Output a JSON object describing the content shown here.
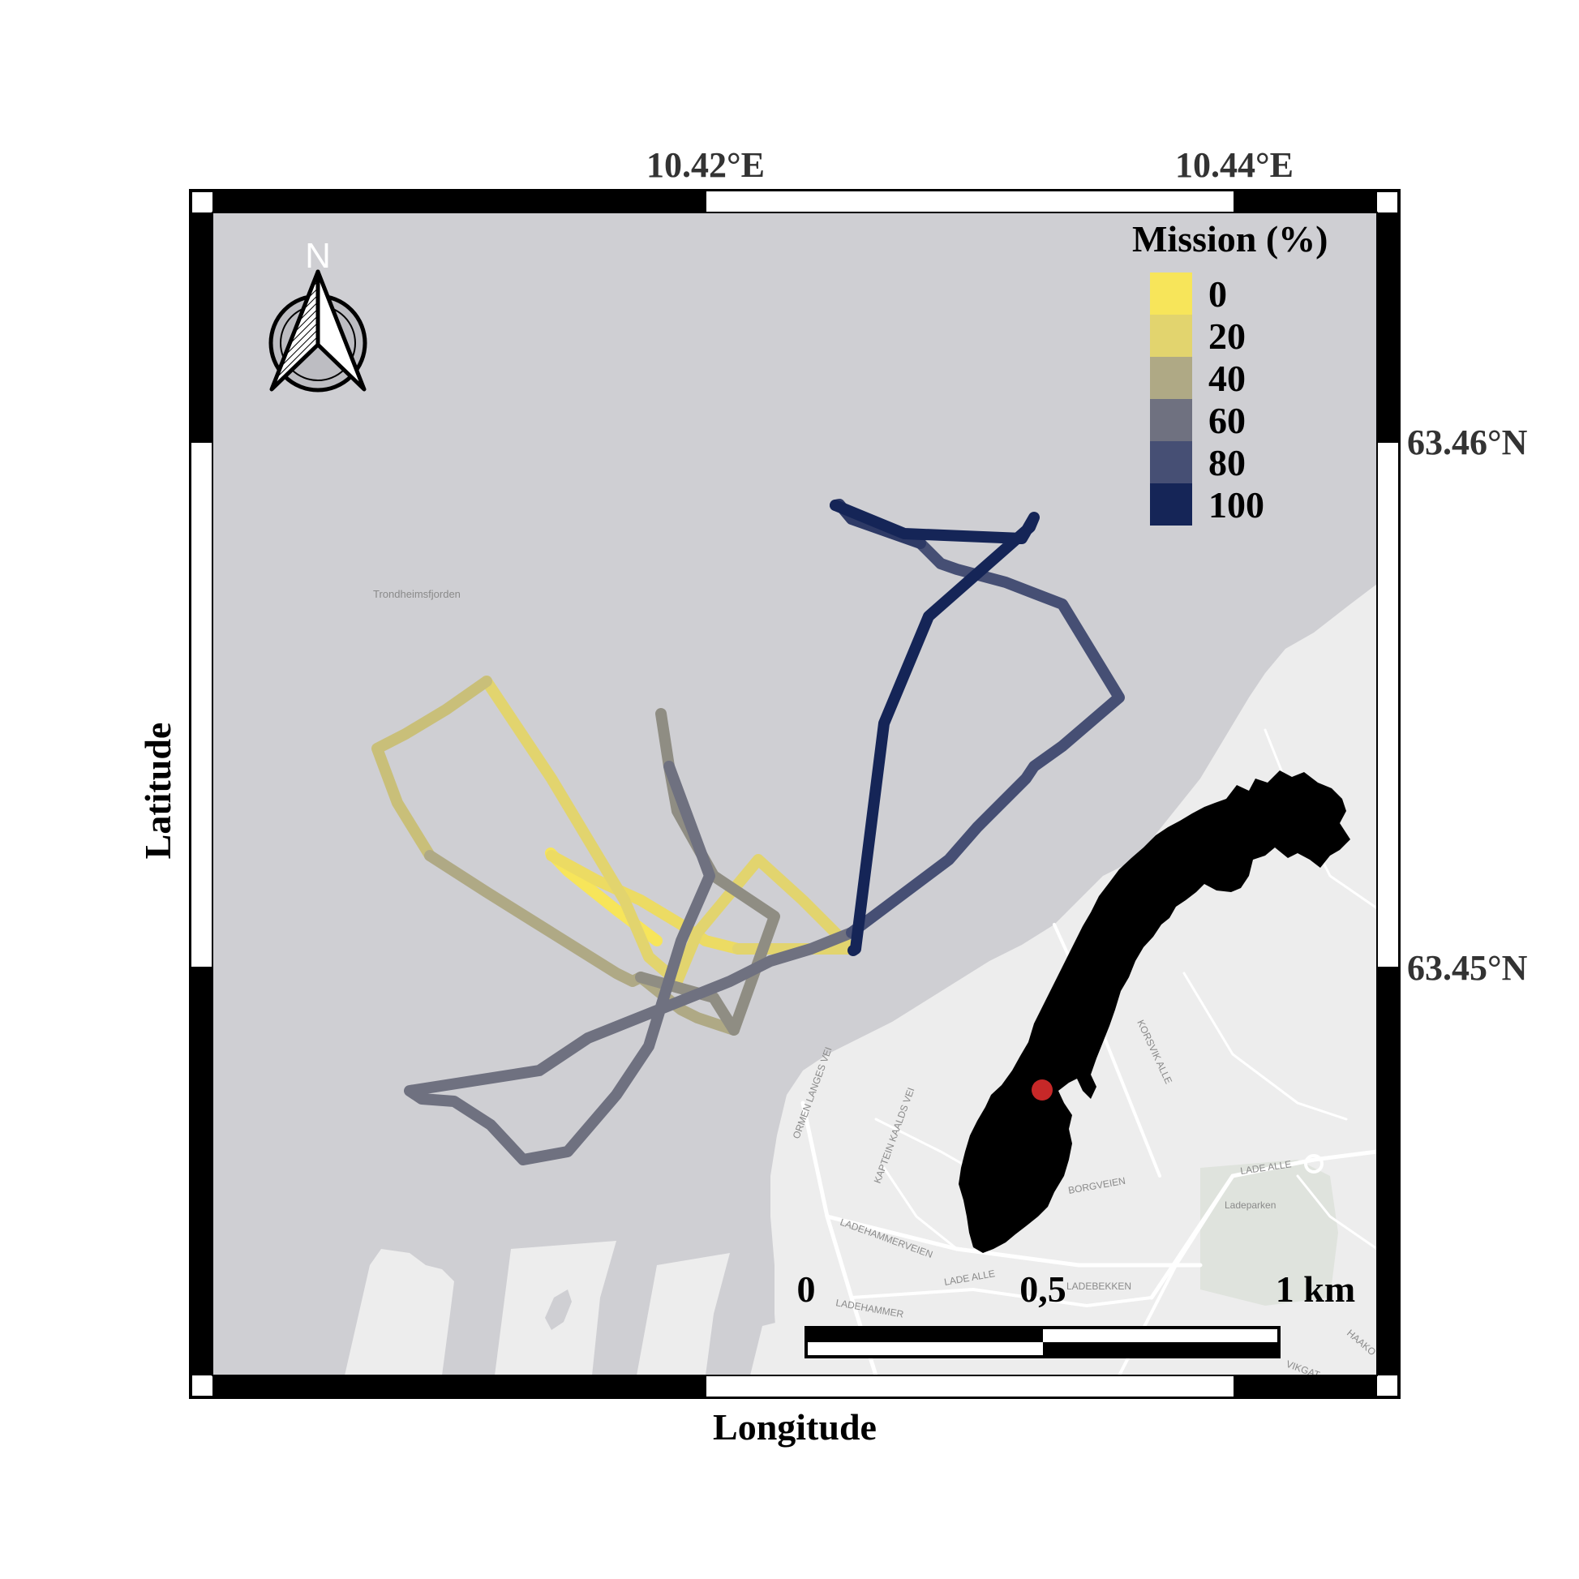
{
  "map": {
    "x_axis_label": "Longitude",
    "y_axis_label": "Latitude",
    "lon_ticks": [
      "10.42°E",
      "10.44°E"
    ],
    "lat_ticks": [
      "63.46°N",
      "63.45°N"
    ],
    "water_label": "Trondheimsfjorden",
    "street_labels": [
      "ORMEN LANGES VEI",
      "KAPTEIN KAALDS VEI",
      "LADEHAMMERVEIEN",
      "LADE ALLE",
      "LADEBEKKEN",
      "KORSVIK ALLE",
      "LADE ALLE",
      "Ladeparken",
      "BORGVEIEN",
      "LADEHAMMER",
      "HAAKO",
      "VIKGAT"
    ],
    "north_arrow_label": "N",
    "colors": {
      "water": "#cfcfd3",
      "land": "#ededed",
      "road": "#ffffff",
      "park": "#dfe3dd",
      "frame": "#000000",
      "inset_country": "#000000",
      "inset_marker": "#c62828"
    }
  },
  "legend": {
    "title": "Mission (%)",
    "items": [
      {
        "label": "0",
        "color": "#f7e55a"
      },
      {
        "label": "20",
        "color": "#e2d46e"
      },
      {
        "label": "40",
        "color": "#afa985"
      },
      {
        "label": "60",
        "color": "#6f7180"
      },
      {
        "label": "80",
        "color": "#464f74"
      },
      {
        "label": "100",
        "color": "#152557"
      }
    ]
  },
  "scale_bar": {
    "labels": [
      "0",
      "0,5",
      "1 km"
    ]
  },
  "track": {
    "segments": [
      {
        "mission_pct": 0,
        "color": "#f7e55a"
      },
      {
        "mission_pct": 10,
        "color": "#ecdb63"
      },
      {
        "mission_pct": 20,
        "color": "#e2d46e"
      },
      {
        "mission_pct": 30,
        "color": "#c9bf79"
      },
      {
        "mission_pct": 40,
        "color": "#afa985"
      },
      {
        "mission_pct": 50,
        "color": "#8f8d83"
      },
      {
        "mission_pct": 60,
        "color": "#6f7180"
      },
      {
        "mission_pct": 70,
        "color": "#5a607a"
      },
      {
        "mission_pct": 80,
        "color": "#464f74"
      },
      {
        "mission_pct": 90,
        "color": "#2e3a66"
      },
      {
        "mission_pct": 100,
        "color": "#152557"
      }
    ]
  }
}
